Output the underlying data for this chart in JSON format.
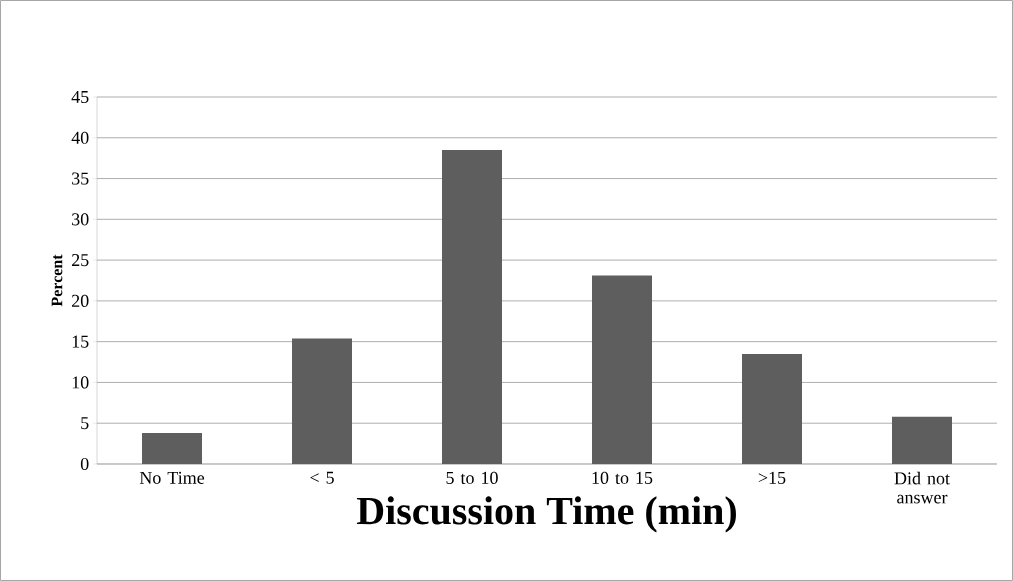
{
  "chart_data": {
    "type": "bar",
    "xlabel": "Discussion Time (min)",
    "ylabel": "Percent",
    "categories": [
      "No Time",
      "< 5",
      "5 to 10",
      "10 to 15",
      ">15",
      "Did not answer"
    ],
    "values": [
      3.8,
      15.4,
      38.5,
      23.1,
      13.5,
      5.8
    ],
    "color": "#5e5e5e",
    "ylim": [
      0,
      45
    ],
    "yticks": [
      0,
      5,
      10,
      15,
      20,
      25,
      30,
      35,
      40,
      45
    ],
    "grid": "y"
  }
}
